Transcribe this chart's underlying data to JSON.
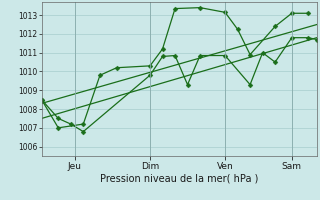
{
  "background_color": "#cce8e8",
  "grid_color": "#a8cece",
  "line_color": "#1a6e1a",
  "xlabel": "Pression niveau de la mer( hPa )",
  "ylim": [
    1005.5,
    1013.7
  ],
  "yticks": [
    1006,
    1007,
    1008,
    1009,
    1010,
    1011,
    1012,
    1013
  ],
  "day_labels": [
    "Jeu",
    "Dim",
    "Ven",
    "Sam"
  ],
  "day_positions": [
    16,
    52,
    88,
    120
  ],
  "xlim": [
    0,
    132
  ],
  "line1_x": [
    0,
    8,
    14,
    20,
    52,
    58,
    64,
    70,
    76,
    88,
    100,
    106,
    112,
    120,
    128,
    132
  ],
  "line1_y": [
    1008.5,
    1007.5,
    1007.2,
    1006.8,
    1009.8,
    1010.8,
    1010.85,
    1009.3,
    1010.85,
    1010.85,
    1009.3,
    1011.0,
    1010.5,
    1011.8,
    1011.8,
    1011.7
  ],
  "line2_x": [
    0,
    8,
    20,
    28,
    36,
    52,
    58,
    64,
    76,
    88,
    94,
    100,
    112,
    120,
    128
  ],
  "line2_y": [
    1008.5,
    1007.0,
    1007.2,
    1009.8,
    1010.2,
    1010.3,
    1011.2,
    1013.35,
    1013.4,
    1013.15,
    1012.25,
    1010.9,
    1012.4,
    1013.1,
    1013.1
  ],
  "line3_x": [
    0,
    132
  ],
  "line3_y": [
    1007.5,
    1011.8
  ],
  "line4_x": [
    0,
    132
  ],
  "line4_y": [
    1008.3,
    1012.5
  ],
  "vline_positions": [
    16,
    52,
    88,
    120
  ]
}
